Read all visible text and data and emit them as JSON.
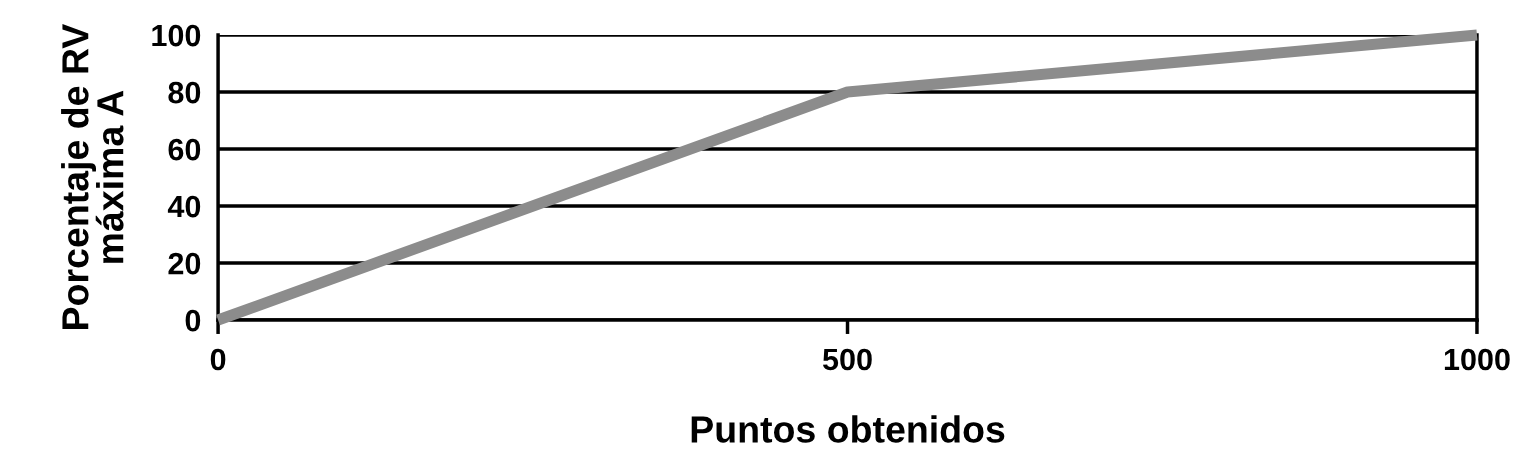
{
  "chart_data": {
    "type": "line",
    "xlabel": "Puntos obtenidos",
    "ylabel": "Porcentaje de RV\nmáxima A",
    "x": [
      0,
      500,
      1000
    ],
    "series": [
      {
        "color": "#8c8c8c",
        "values": [
          0,
          80,
          100
        ]
      }
    ],
    "xlim": [
      0,
      1000
    ],
    "xticks": [
      0,
      500,
      1000
    ],
    "ylim": [
      0,
      100
    ],
    "yticks": [
      0,
      20,
      40,
      60,
      80,
      100
    ],
    "grid": "y",
    "marker": "none",
    "line_style": "solid"
  }
}
